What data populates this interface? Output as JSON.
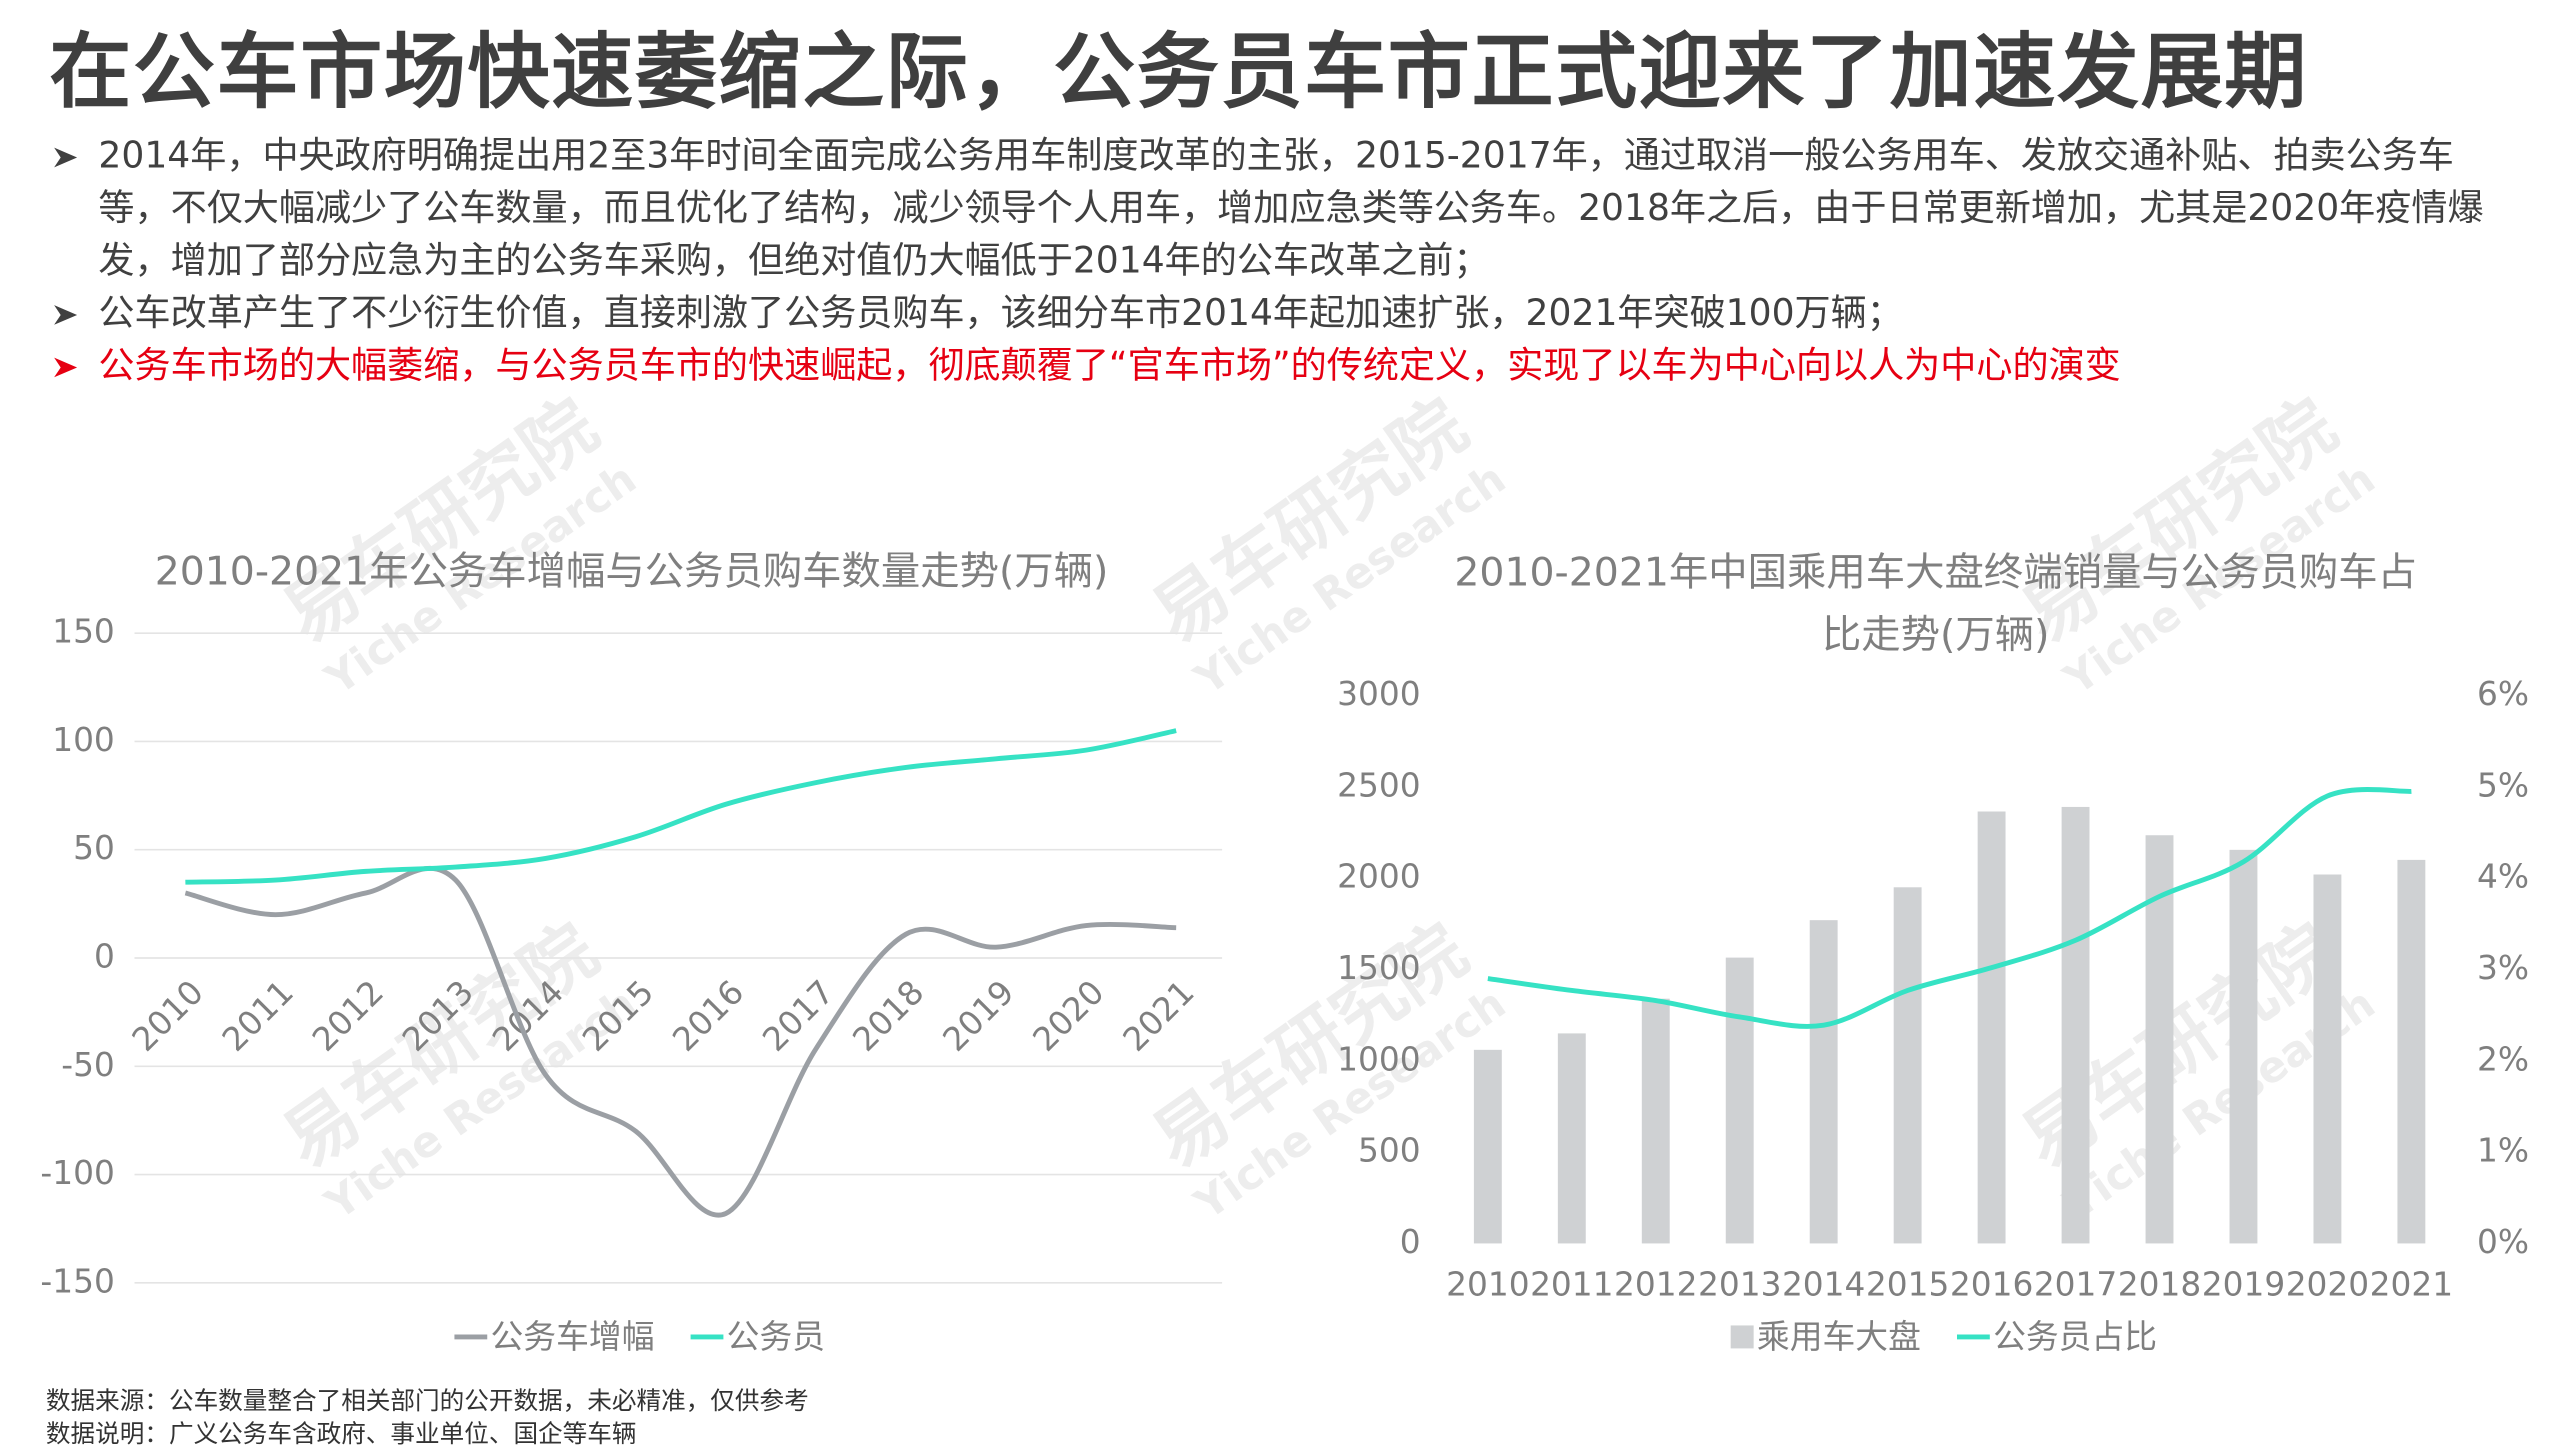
{
  "header": {
    "title": "在公车市场快速萎缩之际，公务员车市正式迎来了加速发展期",
    "bullets": [
      {
        "text": "2014年，中央政府明确提出用2至3年时间全面完成公务用车制度改革的主张，2015-2017年，通过取消一般公务用车、发放交通补贴、拍卖公务车等，不仅大幅减少了公车数量，而且优化了结构，减少领导个人用车，增加应急类等公务车。2018年之后，由于日常更新增加，尤其是2020年疫情爆发，增加了部分应急为主的公务车采购，但绝对值仍大幅低于2014年的公车改革之前；",
        "color": "#404040"
      },
      {
        "text": "公车改革产生了不少衍生价值，直接刺激了公务员购车，该细分车市2014年起加速扩张，2021年突破100万辆；",
        "color": "#404040"
      },
      {
        "text": "公务车市场的大幅萎缩，与公务员车市的快速崛起，彻底颠覆了“官车市场”的传统定义，实现了以车为中心向以人为中心的演变",
        "color": "#e60012"
      }
    ]
  },
  "watermark": {
    "name": "易车研究院",
    "sub": "Yiche Research"
  },
  "chart_data": [
    {
      "type": "line",
      "title": "2010-2021年公务车增幅与公务员购车数量走势(万辆)",
      "categories": [
        "2010",
        "2011",
        "2012",
        "2013",
        "2014",
        "2015",
        "2016",
        "2017",
        "2018",
        "2019",
        "2020",
        "2021"
      ],
      "ylim": [
        -150,
        150
      ],
      "yticks": [
        -150,
        -100,
        -50,
        0,
        50,
        100,
        150
      ],
      "grid": true,
      "legend": "bottom",
      "series": [
        {
          "name": "公务车增幅",
          "color": "#9b9fa4",
          "values": [
            30,
            20,
            30,
            36,
            -54,
            -80,
            -118,
            -42,
            11,
            5,
            15,
            14
          ]
        },
        {
          "name": "公务员",
          "color": "#36e2c4",
          "values": [
            35,
            36,
            40,
            42,
            46,
            56,
            71,
            81,
            88,
            92,
            96,
            105
          ]
        }
      ]
    },
    {
      "type": "bar-line",
      "title": "2010-2021年中国乘用车大盘终端销量与公务员购车占比走势(万辆)",
      "categories": [
        "2010",
        "2011",
        "2012",
        "2013",
        "2014",
        "2015",
        "2016",
        "2017",
        "2018",
        "2019",
        "2020",
        "2021"
      ],
      "ylim": [
        0,
        3000
      ],
      "yticks": [
        0,
        500,
        1000,
        1500,
        2000,
        2500,
        3000
      ],
      "y2lim": [
        0,
        6
      ],
      "y2ticks": [
        {
          "value": 0,
          "label": "0%"
        },
        {
          "value": 1,
          "label": "1%"
        },
        {
          "value": 2,
          "label": "2%"
        },
        {
          "value": 3,
          "label": "3%"
        },
        {
          "value": 4,
          "label": "4%"
        },
        {
          "value": 5,
          "label": "5%"
        },
        {
          "value": 6,
          "label": "6%"
        }
      ],
      "grid": false,
      "legend": "bottom",
      "series": [
        {
          "name": "乘用车大盘",
          "type": "bar",
          "color": "#cfd1d3",
          "values": [
            1060,
            1150,
            1340,
            1565,
            1770,
            1950,
            2365,
            2390,
            2235,
            2155,
            2020,
            2100
          ]
        },
        {
          "name": "公务员占比",
          "type": "line",
          "axis": "y2",
          "color": "#36e2c4",
          "values": [
            2.9,
            2.77,
            2.66,
            2.48,
            2.39,
            2.77,
            3.02,
            3.32,
            3.8,
            4.18,
            4.9,
            4.95
          ]
        }
      ]
    }
  ],
  "footnotes": [
    "数据来源：公车数量整合了相关部门的公开数据，未必精准，仅供参考",
    "数据说明：广义公务车含政府、事业单位、国企等车辆"
  ]
}
